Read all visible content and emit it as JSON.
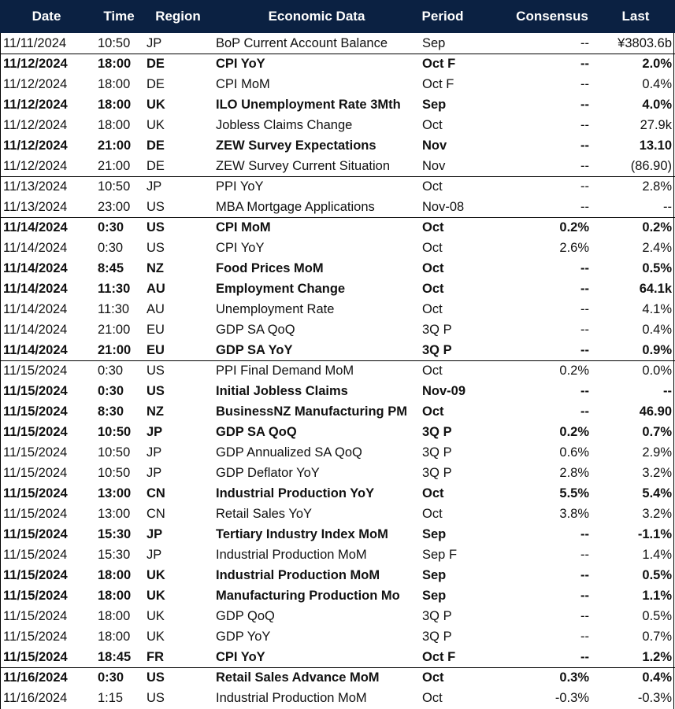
{
  "table": {
    "header": [
      "Date",
      "Time",
      "Region",
      "Economic Data",
      "Period",
      "Consensus",
      "Last"
    ],
    "rows": [
      {
        "cells": [
          "11/11/2024",
          "10:50",
          "JP",
          "BoP Current Account Balance",
          "Sep",
          "--",
          "¥3803.6b"
        ],
        "bold": false
      },
      {
        "cells": [
          "11/12/2024",
          "18:00",
          "DE",
          "CPI YoY",
          "Oct F",
          "--",
          "2.0%"
        ],
        "bold": true
      },
      {
        "cells": [
          "11/12/2024",
          "18:00",
          "DE",
          "CPI MoM",
          "Oct F",
          "--",
          "0.4%"
        ],
        "bold": false
      },
      {
        "cells": [
          "11/12/2024",
          "18:00",
          "UK",
          "ILO Unemployment Rate 3Mth",
          "Sep",
          "--",
          "4.0%"
        ],
        "bold": true
      },
      {
        "cells": [
          "11/12/2024",
          "18:00",
          "UK",
          "Jobless Claims Change",
          "Oct",
          "--",
          "27.9k"
        ],
        "bold": false
      },
      {
        "cells": [
          "11/12/2024",
          "21:00",
          "DE",
          "ZEW Survey Expectations",
          "Nov",
          "--",
          "13.10"
        ],
        "bold": true
      },
      {
        "cells": [
          "11/12/2024",
          "21:00",
          "DE",
          "ZEW Survey Current Situation",
          "Nov",
          "--",
          "(86.90)"
        ],
        "bold": false
      },
      {
        "cells": [
          "11/13/2024",
          "10:50",
          "JP",
          "PPI YoY",
          "Oct",
          "--",
          "2.8%"
        ],
        "bold": false
      },
      {
        "cells": [
          "11/13/2024",
          "23:00",
          "US",
          "MBA Mortgage Applications",
          "Nov-08",
          "--",
          "--"
        ],
        "bold": false
      },
      {
        "cells": [
          "11/14/2024",
          "0:30",
          "US",
          "CPI MoM",
          "Oct",
          "0.2%",
          "0.2%"
        ],
        "bold": true
      },
      {
        "cells": [
          "11/14/2024",
          "0:30",
          "US",
          "CPI YoY",
          "Oct",
          "2.6%",
          "2.4%"
        ],
        "bold": false
      },
      {
        "cells": [
          "11/14/2024",
          "8:45",
          "NZ",
          "Food Prices MoM",
          "Oct",
          "--",
          "0.5%"
        ],
        "bold": true
      },
      {
        "cells": [
          "11/14/2024",
          "11:30",
          "AU",
          "Employment Change",
          "Oct",
          "--",
          "64.1k"
        ],
        "bold": true
      },
      {
        "cells": [
          "11/14/2024",
          "11:30",
          "AU",
          "Unemployment Rate",
          "Oct",
          "--",
          "4.1%"
        ],
        "bold": false
      },
      {
        "cells": [
          "11/14/2024",
          "21:00",
          "EU",
          "GDP SA QoQ",
          "3Q P",
          "--",
          "0.4%"
        ],
        "bold": false
      },
      {
        "cells": [
          "11/14/2024",
          "21:00",
          "EU",
          "GDP SA YoY",
          "3Q P",
          "--",
          "0.9%"
        ],
        "bold": true
      },
      {
        "cells": [
          "11/15/2024",
          "0:30",
          "US",
          "PPI Final Demand MoM",
          "Oct",
          "0.2%",
          "0.0%"
        ],
        "bold": false
      },
      {
        "cells": [
          "11/15/2024",
          "0:30",
          "US",
          "Initial Jobless Claims",
          "Nov-09",
          "--",
          "--"
        ],
        "bold": true
      },
      {
        "cells": [
          "11/15/2024",
          "8:30",
          "NZ",
          "BusinessNZ Manufacturing PM",
          "Oct",
          "--",
          "46.90"
        ],
        "bold": true
      },
      {
        "cells": [
          "11/15/2024",
          "10:50",
          "JP",
          "GDP SA QoQ",
          "3Q P",
          "0.2%",
          "0.7%"
        ],
        "bold": true
      },
      {
        "cells": [
          "11/15/2024",
          "10:50",
          "JP",
          "GDP Annualized SA QoQ",
          "3Q P",
          "0.6%",
          "2.9%"
        ],
        "bold": false
      },
      {
        "cells": [
          "11/15/2024",
          "10:50",
          "JP",
          "GDP Deflator YoY",
          "3Q P",
          "2.8%",
          "3.2%"
        ],
        "bold": false
      },
      {
        "cells": [
          "11/15/2024",
          "13:00",
          "CN",
          "Industrial Production YoY",
          "Oct",
          "5.5%",
          "5.4%"
        ],
        "bold": true
      },
      {
        "cells": [
          "11/15/2024",
          "13:00",
          "CN",
          "Retail Sales YoY",
          "Oct",
          "3.8%",
          "3.2%"
        ],
        "bold": false
      },
      {
        "cells": [
          "11/15/2024",
          "15:30",
          "JP",
          "Tertiary Industry Index MoM",
          "Sep",
          "--",
          "-1.1%"
        ],
        "bold": true
      },
      {
        "cells": [
          "11/15/2024",
          "15:30",
          "JP",
          "Industrial Production MoM",
          "Sep F",
          "--",
          "1.4%"
        ],
        "bold": false
      },
      {
        "cells": [
          "11/15/2024",
          "18:00",
          "UK",
          "Industrial Production MoM",
          "Sep",
          "--",
          "0.5%"
        ],
        "bold": true
      },
      {
        "cells": [
          "11/15/2024",
          "18:00",
          "UK",
          "Manufacturing Production Mo",
          "Sep",
          "--",
          "1.1%"
        ],
        "bold": true
      },
      {
        "cells": [
          "11/15/2024",
          "18:00",
          "UK",
          "GDP QoQ",
          "3Q P",
          "--",
          "0.5%"
        ],
        "bold": false
      },
      {
        "cells": [
          "11/15/2024",
          "18:00",
          "UK",
          "GDP YoY",
          "3Q P",
          "--",
          "0.7%"
        ],
        "bold": false
      },
      {
        "cells": [
          "11/15/2024",
          "18:45",
          "FR",
          "CPI YoY",
          "Oct F",
          "--",
          "1.2%"
        ],
        "bold": true
      },
      {
        "cells": [
          "11/16/2024",
          "0:30",
          "US",
          "Retail Sales Advance MoM",
          "Oct",
          "0.3%",
          "0.4%"
        ],
        "bold": true
      },
      {
        "cells": [
          "11/16/2024",
          "1:15",
          "US",
          "Industrial Production MoM",
          "Oct",
          "-0.3%",
          "-0.3%"
        ],
        "bold": false
      }
    ]
  }
}
